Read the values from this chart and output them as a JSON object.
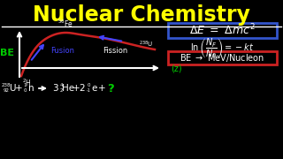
{
  "title": "Nuclear Chemistry",
  "title_color": "#FFFF00",
  "bg_color": "#000000",
  "curve_color": "#CC2222",
  "fusion_arrow_color": "#4444FF",
  "fission_arrow_color": "#4444FF",
  "be_label_color": "#00CC00",
  "white": "#FFFFFF",
  "green": "#00CC00",
  "blue_box_color": "#3355CC",
  "red_box_color": "#CC2222",
  "fusion_label": "Fusion",
  "fission_label": "Fission",
  "z_label": "(z)"
}
